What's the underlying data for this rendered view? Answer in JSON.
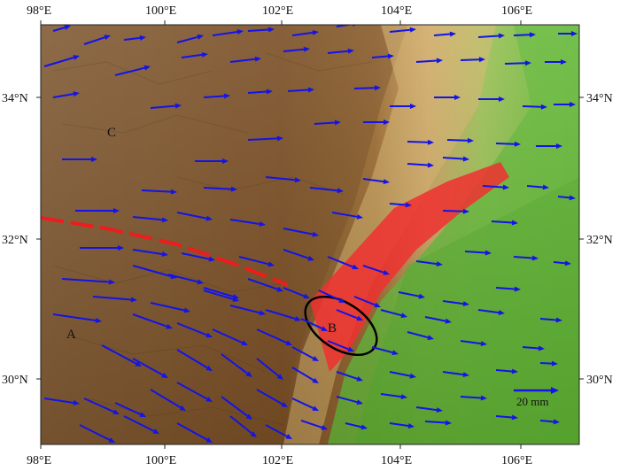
{
  "map": {
    "lon_ticks": [
      "98°E",
      "100°E",
      "102°E",
      "104°E",
      "106°E"
    ],
    "lat_ticks": [
      "34°N",
      "32°N",
      "30°N"
    ],
    "labels": {
      "a": "A",
      "b": "B",
      "c": "C"
    },
    "scale_bar_label": "20 mm",
    "colors": {
      "vector": "#1414e6",
      "fault_zone": "#f03030",
      "fault_line": "#ee1c1c",
      "ellipse": "#000000",
      "highland": "#8b5a2b",
      "lowland": "#6fbf3a"
    },
    "arrow_icon": "arrow-right-icon"
  }
}
